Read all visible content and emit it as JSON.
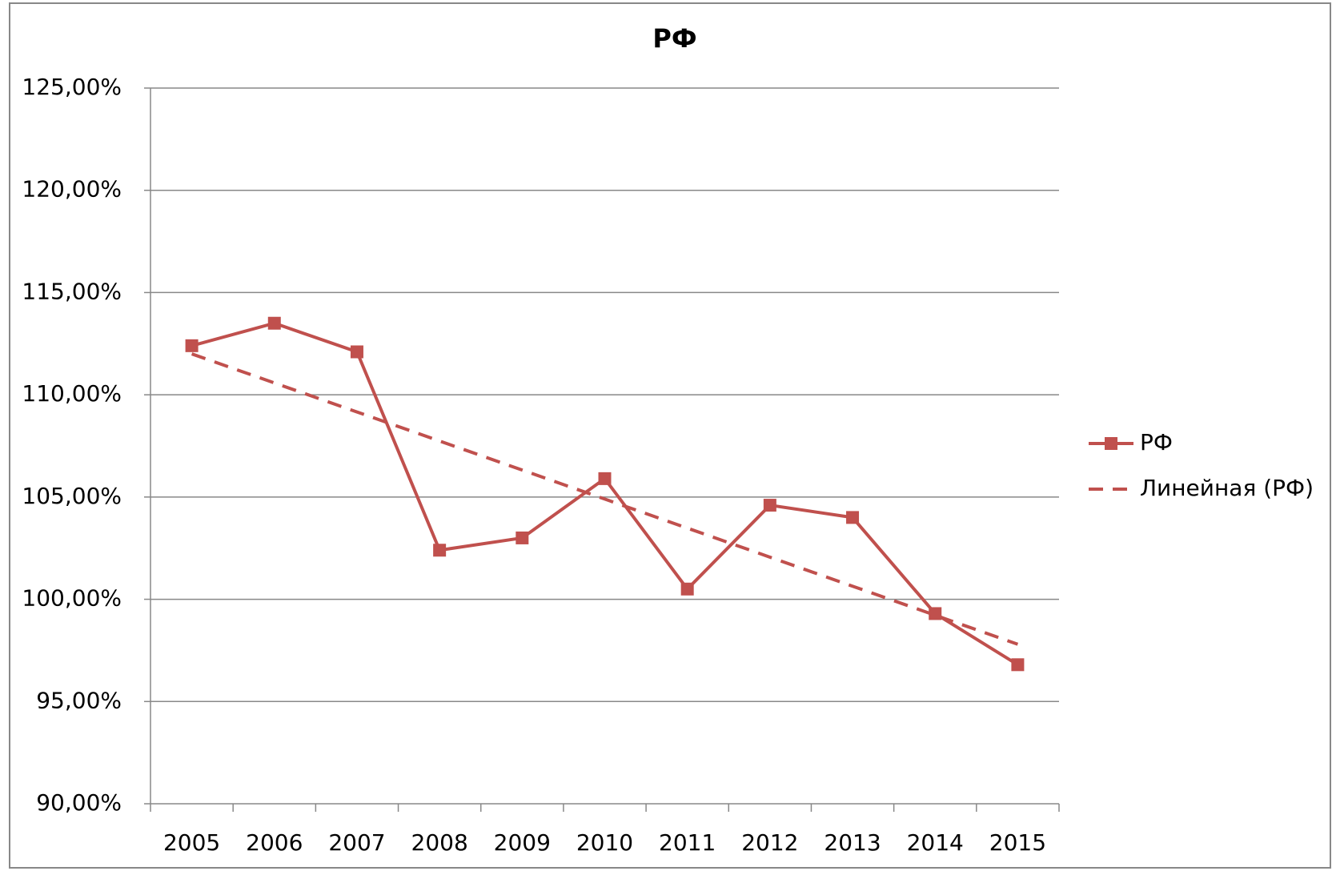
{
  "chart_data": {
    "type": "line",
    "title": "РФ",
    "categories": [
      "2005",
      "2006",
      "2007",
      "2008",
      "2009",
      "2010",
      "2011",
      "2012",
      "2013",
      "2014",
      "2015"
    ],
    "series": [
      {
        "name": "РФ",
        "color": "#c0504d",
        "values": [
          112.4,
          113.5,
          112.1,
          102.4,
          103.0,
          105.9,
          100.5,
          104.6,
          104.0,
          99.3,
          96.8
        ]
      },
      {
        "name": "Линейная (РФ)",
        "color": "#c0504d",
        "dashed": true,
        "values": [
          112.0,
          110.58,
          109.16,
          107.74,
          106.32,
          104.9,
          103.48,
          102.06,
          100.64,
          99.22,
          97.8
        ]
      }
    ],
    "ylim": [
      90,
      125
    ],
    "yticks": [
      {
        "value": 90,
        "label": "90,00%"
      },
      {
        "value": 95,
        "label": "95,00%"
      },
      {
        "value": 100,
        "label": "100,00%"
      },
      {
        "value": 105,
        "label": "105,00%"
      },
      {
        "value": 110,
        "label": "110,00%"
      },
      {
        "value": 115,
        "label": "115,00%"
      },
      {
        "value": 120,
        "label": "120,00%"
      },
      {
        "value": 125,
        "label": "125,00%"
      }
    ],
    "grid": true,
    "legend": "right"
  }
}
